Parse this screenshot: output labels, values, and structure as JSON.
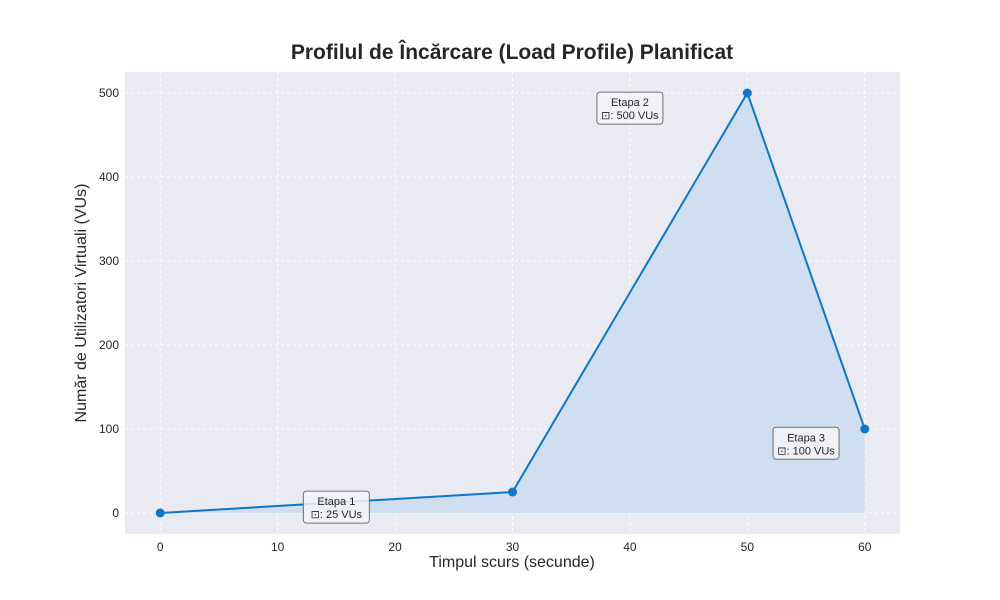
{
  "chart_data": {
    "type": "line",
    "title": "Profilul de Încărcare (Load Profile) Planificat",
    "xlabel": "Timpul scurs (secunde)",
    "ylabel": "Număr de Utilizatori Virtuali (VUs)",
    "x": [
      0,
      30,
      50,
      60
    ],
    "series": [
      {
        "values": [
          0,
          25,
          500,
          100
        ]
      }
    ],
    "xlim": [
      -3,
      63
    ],
    "ylim": [
      -25,
      525
    ],
    "xticks": [
      0,
      10,
      20,
      30,
      40,
      50,
      60
    ],
    "yticks": [
      0,
      100,
      200,
      300,
      400,
      500
    ],
    "grid": true,
    "fill_under": true,
    "annotations": [
      {
        "title": "Etapa 1",
        "text": "⊡: 25 VUs",
        "x": 15,
        "y": 7
      },
      {
        "title": "Etapa 2",
        "text": "⊡: 500 VUs",
        "x": 40,
        "y": 482
      },
      {
        "title": "Etapa 3",
        "text": "⊡: 100 VUs",
        "x": 55,
        "y": 83
      }
    ],
    "colors": {
      "line": "#0f77c9",
      "fill": "#c6daf0",
      "plot_bg": "#eaeaf2",
      "grid": "#ffffff",
      "annotation_border": "#707070",
      "annotation_bg": "#f4f4f8"
    }
  }
}
